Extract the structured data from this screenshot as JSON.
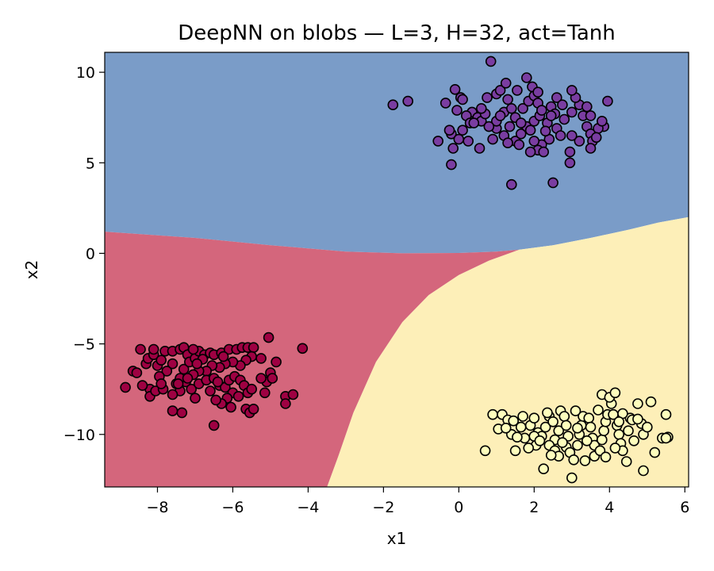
{
  "chart_data": {
    "type": "scatter",
    "title": "DeepNN on blobs — L=3, H=32, act=Tanh",
    "xlabel": "x1",
    "ylabel": "x2",
    "xlim": [
      -9.4,
      6.1
    ],
    "ylim": [
      -12.9,
      11.1
    ],
    "xticks": [
      -8,
      -6,
      -4,
      -2,
      0,
      2,
      4,
      6
    ],
    "xtick_labels": [
      "−8",
      "−6",
      "−4",
      "−2",
      "0",
      "2",
      "4",
      "6"
    ],
    "yticks": [
      10,
      5,
      0,
      -5,
      -10
    ],
    "ytick_labels": [
      "10",
      "5",
      "0",
      "−5",
      "−10"
    ],
    "grid": false,
    "legend": "none",
    "decision_regions": [
      {
        "class": "upper",
        "color": "#7a9cc8",
        "note": "decision region"
      },
      {
        "class": "lower-left",
        "color": "#d4667c",
        "note": "decision region"
      },
      {
        "class": "lower-right",
        "color": "#fdefb8",
        "note": "decision region"
      }
    ],
    "boundaries": {
      "upper_boundary": [
        [
          -9.4,
          1.2
        ],
        [
          -7.0,
          0.85
        ],
        [
          -5.0,
          0.45
        ],
        [
          -3.0,
          0.1
        ],
        [
          -1.5,
          0.0
        ],
        [
          0.0,
          0.02
        ],
        [
          1.0,
          0.1
        ],
        [
          1.6,
          0.2
        ],
        [
          2.5,
          0.45
        ],
        [
          3.5,
          0.85
        ],
        [
          4.5,
          1.3
        ],
        [
          5.3,
          1.7
        ],
        [
          6.1,
          2.0
        ]
      ],
      "left_right_boundary": [
        [
          1.6,
          0.2
        ],
        [
          0.8,
          -0.4
        ],
        [
          0.0,
          -1.2
        ],
        [
          -0.8,
          -2.3
        ],
        [
          -1.5,
          -3.8
        ],
        [
          -2.2,
          -6.0
        ],
        [
          -2.8,
          -8.8
        ],
        [
          -3.2,
          -11.2
        ],
        [
          -3.5,
          -12.9
        ]
      ]
    },
    "series": [
      {
        "color": "#7a3da1",
        "points": [
          [
            0.85,
            10.6
          ],
          [
            -1.75,
            8.2
          ],
          [
            -1.35,
            8.4
          ],
          [
            -0.35,
            8.3
          ],
          [
            -0.1,
            9.05
          ],
          [
            0.05,
            8.6
          ],
          [
            0.1,
            8.5
          ],
          [
            0.35,
            7.8
          ],
          [
            0.5,
            7.5
          ],
          [
            0.6,
            7.3
          ],
          [
            0.2,
            7.6
          ],
          [
            -0.05,
            7.9
          ],
          [
            0.3,
            7.2
          ],
          [
            0.1,
            6.8
          ],
          [
            -0.2,
            6.6
          ],
          [
            0.0,
            6.3
          ],
          [
            -0.25,
            6.8
          ],
          [
            -0.55,
            6.2
          ],
          [
            0.25,
            6.2
          ],
          [
            -0.15,
            5.8
          ],
          [
            0.55,
            5.8
          ],
          [
            -0.2,
            4.9
          ],
          [
            0.9,
            6.3
          ],
          [
            1.0,
            6.9
          ],
          [
            1.2,
            7.8
          ],
          [
            1.0,
            8.8
          ],
          [
            1.1,
            9.0
          ],
          [
            1.3,
            8.5
          ],
          [
            1.4,
            8.0
          ],
          [
            1.5,
            7.5
          ],
          [
            1.35,
            7.0
          ],
          [
            1.2,
            6.5
          ],
          [
            1.5,
            6.2
          ],
          [
            1.65,
            6.6
          ],
          [
            1.8,
            7.0
          ],
          [
            2.0,
            7.3
          ],
          [
            2.15,
            7.6
          ],
          [
            1.7,
            8.0
          ],
          [
            1.85,
            8.4
          ],
          [
            2.0,
            8.7
          ],
          [
            2.1,
            8.3
          ],
          [
            2.2,
            7.9
          ],
          [
            2.45,
            8.1
          ],
          [
            2.55,
            7.7
          ],
          [
            2.35,
            7.2
          ],
          [
            2.6,
            6.9
          ],
          [
            2.8,
            7.4
          ],
          [
            3.0,
            7.8
          ],
          [
            3.2,
            8.2
          ],
          [
            3.1,
            8.6
          ],
          [
            3.4,
            8.1
          ],
          [
            3.0,
            9.0
          ],
          [
            3.3,
            7.6
          ],
          [
            3.4,
            7.0
          ],
          [
            3.5,
            6.6
          ],
          [
            3.55,
            6.2
          ],
          [
            3.2,
            6.2
          ],
          [
            3.0,
            6.5
          ],
          [
            2.7,
            6.5
          ],
          [
            2.4,
            6.3
          ],
          [
            2.2,
            6.0
          ],
          [
            2.1,
            5.7
          ],
          [
            1.9,
            5.6
          ],
          [
            2.25,
            5.6
          ],
          [
            2.95,
            5.6
          ],
          [
            2.95,
            5.0
          ],
          [
            3.5,
            5.8
          ],
          [
            3.85,
            7.0
          ],
          [
            3.5,
            7.6
          ],
          [
            3.95,
            8.4
          ],
          [
            1.4,
            3.8
          ],
          [
            2.5,
            3.9
          ],
          [
            1.0,
            7.3
          ],
          [
            1.55,
            9.0
          ],
          [
            1.8,
            9.7
          ],
          [
            1.95,
            9.2
          ],
          [
            1.25,
            9.4
          ],
          [
            2.1,
            8.9
          ],
          [
            2.6,
            8.6
          ],
          [
            1.65,
            7.2
          ],
          [
            1.9,
            6.8
          ],
          [
            2.0,
            6.2
          ],
          [
            1.3,
            6.1
          ],
          [
            0.8,
            7.0
          ],
          [
            0.7,
            7.7
          ],
          [
            0.4,
            7.2
          ],
          [
            3.7,
            6.9
          ],
          [
            3.65,
            6.4
          ],
          [
            0.75,
            8.6
          ],
          [
            2.3,
            6.75
          ],
          [
            2.75,
            8.2
          ],
          [
            0.6,
            8.0
          ],
          [
            1.6,
            6.0
          ],
          [
            3.8,
            7.3
          ],
          [
            2.45,
            7.6
          ],
          [
            1.1,
            7.6
          ]
        ]
      },
      {
        "color": "#9e0142",
        "points": [
          [
            -8.85,
            -7.4
          ],
          [
            -8.65,
            -6.5
          ],
          [
            -8.55,
            -6.6
          ],
          [
            -8.3,
            -6.1
          ],
          [
            -8.45,
            -5.3
          ],
          [
            -8.25,
            -5.8
          ],
          [
            -8.1,
            -5.6
          ],
          [
            -8.0,
            -6.2
          ],
          [
            -7.9,
            -5.9
          ],
          [
            -7.8,
            -5.4
          ],
          [
            -7.6,
            -5.4
          ],
          [
            -7.4,
            -5.3
          ],
          [
            -7.3,
            -5.2
          ],
          [
            -7.2,
            -5.6
          ],
          [
            -7.6,
            -6.1
          ],
          [
            -7.75,
            -6.5
          ],
          [
            -7.95,
            -6.8
          ],
          [
            -8.2,
            -7.5
          ],
          [
            -8.2,
            -7.9
          ],
          [
            -8.05,
            -7.6
          ],
          [
            -7.85,
            -7.5
          ],
          [
            -7.9,
            -7.2
          ],
          [
            -7.5,
            -7.2
          ],
          [
            -7.4,
            -7.6
          ],
          [
            -7.25,
            -7.1
          ],
          [
            -7.4,
            -6.9
          ],
          [
            -7.3,
            -6.4
          ],
          [
            -7.15,
            -6.0
          ],
          [
            -7.0,
            -5.8
          ],
          [
            -6.9,
            -5.4
          ],
          [
            -6.75,
            -5.6
          ],
          [
            -6.6,
            -5.5
          ],
          [
            -6.5,
            -5.6
          ],
          [
            -6.3,
            -5.5
          ],
          [
            -6.1,
            -5.3
          ],
          [
            -5.9,
            -5.3
          ],
          [
            -5.75,
            -5.2
          ],
          [
            -5.6,
            -5.2
          ],
          [
            -5.45,
            -5.2
          ],
          [
            -5.5,
            -5.7
          ],
          [
            -5.65,
            -5.9
          ],
          [
            -5.8,
            -6.2
          ],
          [
            -6.0,
            -6.0
          ],
          [
            -6.2,
            -6.1
          ],
          [
            -6.35,
            -6.3
          ],
          [
            -6.55,
            -6.2
          ],
          [
            -6.7,
            -6.5
          ],
          [
            -6.9,
            -6.5
          ],
          [
            -7.05,
            -6.7
          ],
          [
            -7.2,
            -6.9
          ],
          [
            -7.35,
            -8.8
          ],
          [
            -7.6,
            -8.7
          ],
          [
            -7.1,
            -7.5
          ],
          [
            -6.9,
            -7.2
          ],
          [
            -6.7,
            -7.0
          ],
          [
            -6.5,
            -6.9
          ],
          [
            -6.35,
            -7.3
          ],
          [
            -6.2,
            -7.4
          ],
          [
            -6.1,
            -7.0
          ],
          [
            -5.95,
            -6.8
          ],
          [
            -5.8,
            -7.0
          ],
          [
            -5.7,
            -7.3
          ],
          [
            -5.6,
            -7.7
          ],
          [
            -5.5,
            -7.5
          ],
          [
            -6.0,
            -7.7
          ],
          [
            -6.15,
            -8.0
          ],
          [
            -6.3,
            -8.3
          ],
          [
            -6.45,
            -8.1
          ],
          [
            -6.05,
            -8.5
          ],
          [
            -5.65,
            -8.6
          ],
          [
            -5.55,
            -8.8
          ],
          [
            -5.45,
            -8.6
          ],
          [
            -5.15,
            -7.7
          ],
          [
            -5.1,
            -7.1
          ],
          [
            -5.25,
            -6.9
          ],
          [
            -5.0,
            -6.6
          ],
          [
            -4.95,
            -6.9
          ],
          [
            -4.85,
            -6.0
          ],
          [
            -4.6,
            -7.9
          ],
          [
            -4.6,
            -8.3
          ],
          [
            -4.4,
            -7.8
          ],
          [
            -5.05,
            -4.65
          ],
          [
            -4.15,
            -5.25
          ],
          [
            -6.5,
            -9.5
          ],
          [
            -7.45,
            -7.2
          ],
          [
            -6.8,
            -5.85
          ],
          [
            -6.25,
            -5.7
          ],
          [
            -7.6,
            -7.8
          ],
          [
            -5.25,
            -5.8
          ],
          [
            -8.4,
            -7.3
          ],
          [
            -7.0,
            -8.0
          ],
          [
            -6.6,
            -7.6
          ],
          [
            -5.85,
            -7.9
          ],
          [
            -6.95,
            -6.1
          ],
          [
            -8.1,
            -5.3
          ],
          [
            -6.4,
            -7.1
          ],
          [
            -7.05,
            -5.3
          ]
        ]
      },
      {
        "color": "#fefebd",
        "points": [
          [
            0.7,
            -10.9
          ],
          [
            0.9,
            -8.9
          ],
          [
            1.15,
            -8.9
          ],
          [
            1.05,
            -9.7
          ],
          [
            1.3,
            -9.2
          ],
          [
            1.4,
            -10.0
          ],
          [
            1.5,
            -10.9
          ],
          [
            1.7,
            -9.0
          ],
          [
            1.65,
            -9.6
          ],
          [
            1.75,
            -10.2
          ],
          [
            1.9,
            -9.5
          ],
          [
            2.0,
            -9.1
          ],
          [
            2.1,
            -9.9
          ],
          [
            2.05,
            -10.6
          ],
          [
            2.2,
            -10.1
          ],
          [
            2.3,
            -9.6
          ],
          [
            2.4,
            -9.0
          ],
          [
            2.5,
            -9.3
          ],
          [
            2.55,
            -10.3
          ],
          [
            2.4,
            -10.6
          ],
          [
            2.55,
            -10.9
          ],
          [
            2.65,
            -9.8
          ],
          [
            2.7,
            -8.7
          ],
          [
            2.8,
            -9.0
          ],
          [
            2.85,
            -9.5
          ],
          [
            2.9,
            -10.1
          ],
          [
            2.85,
            -10.7
          ],
          [
            2.95,
            -11.0
          ],
          [
            3.05,
            -11.4
          ],
          [
            3.15,
            -10.6
          ],
          [
            3.2,
            -10.0
          ],
          [
            3.25,
            -9.5
          ],
          [
            3.3,
            -9.0
          ],
          [
            3.45,
            -9.1
          ],
          [
            3.5,
            -9.6
          ],
          [
            3.55,
            -10.2
          ],
          [
            3.6,
            -10.6
          ],
          [
            3.6,
            -11.2
          ],
          [
            3.75,
            -10.9
          ],
          [
            3.8,
            -10.3
          ],
          [
            3.85,
            -9.8
          ],
          [
            3.9,
            -9.3
          ],
          [
            3.95,
            -8.9
          ],
          [
            4.05,
            -8.3
          ],
          [
            4.1,
            -8.9
          ],
          [
            4.2,
            -9.5
          ],
          [
            4.25,
            -10.0
          ],
          [
            4.3,
            -10.5
          ],
          [
            4.35,
            -10.9
          ],
          [
            4.45,
            -11.5
          ],
          [
            4.5,
            -9.8
          ],
          [
            4.55,
            -9.1
          ],
          [
            4.6,
            -9.2
          ],
          [
            4.75,
            -8.3
          ],
          [
            4.85,
            -9.4
          ],
          [
            4.9,
            -10.0
          ],
          [
            5.0,
            -9.6
          ],
          [
            5.1,
            -8.2
          ],
          [
            5.2,
            -11.0
          ],
          [
            5.4,
            -10.2
          ],
          [
            5.5,
            -8.9
          ],
          [
            5.55,
            -10.15
          ],
          [
            5.5,
            -10.2
          ],
          [
            4.9,
            -12.0
          ],
          [
            3.0,
            -12.4
          ],
          [
            2.25,
            -11.9
          ],
          [
            3.8,
            -7.8
          ],
          [
            4.0,
            -7.95
          ],
          [
            4.15,
            -7.7
          ],
          [
            2.65,
            -11.2
          ],
          [
            3.35,
            -11.45
          ],
          [
            3.7,
            -8.65
          ],
          [
            2.0,
            -10.1
          ],
          [
            4.35,
            -8.85
          ],
          [
            1.55,
            -10.15
          ],
          [
            1.25,
            -9.65
          ],
          [
            1.85,
            -10.75
          ],
          [
            2.35,
            -8.8
          ],
          [
            3.1,
            -8.7
          ],
          [
            3.4,
            -10.35
          ],
          [
            4.15,
            -10.75
          ],
          [
            4.65,
            -10.35
          ],
          [
            2.75,
            -10.45
          ],
          [
            3.9,
            -11.25
          ],
          [
            2.15,
            -10.35
          ],
          [
            1.45,
            -9.25
          ],
          [
            4.75,
            -9.15
          ],
          [
            3.15,
            -9.65
          ],
          [
            2.45,
            -11.15
          ],
          [
            4.25,
            -9.3
          ]
        ]
      }
    ]
  }
}
